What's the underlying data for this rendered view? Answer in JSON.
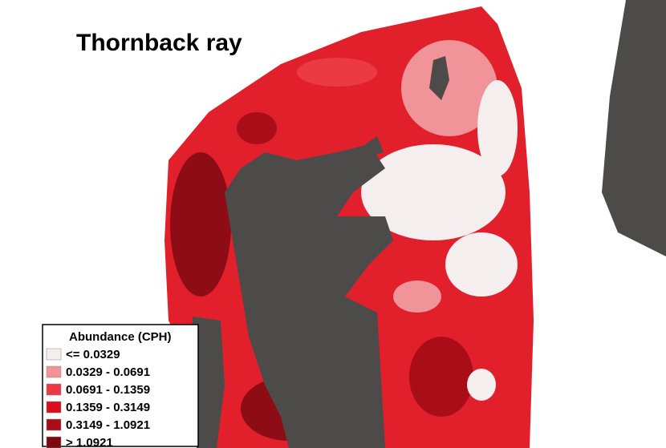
{
  "title": "Thornback ray",
  "legend": {
    "title": "Abundance (CPH)",
    "items": [
      {
        "label": "<= 0.0329",
        "color": "#f4eeee"
      },
      {
        "label": "0.0329 - 0.0691",
        "color": "#f09499"
      },
      {
        "label": "0.0691 - 0.1359",
        "color": "#ec3a45"
      },
      {
        "label": "0.1359 - 0.3149",
        "color": "#da0f1e"
      },
      {
        "label": "0.3149 - 1.0921",
        "color": "#a80d18"
      },
      {
        "label": "> 1.0921",
        "color": "#7a0a10"
      }
    ]
  }
}
